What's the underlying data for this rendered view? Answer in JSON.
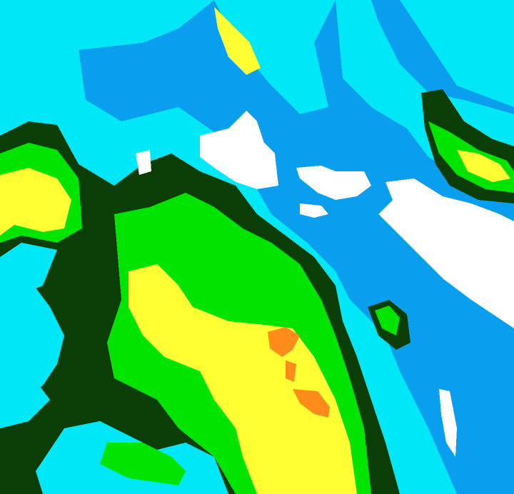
{
  "map": {
    "palette": {
      "water_blue": "#0a9fee",
      "cyan": "#00e8f8",
      "dark_green": "#0b3e06",
      "green": "#00e400",
      "yellow": "#ffff33",
      "orange": "#ff8c1a",
      "white": "#ffffff"
    }
  }
}
